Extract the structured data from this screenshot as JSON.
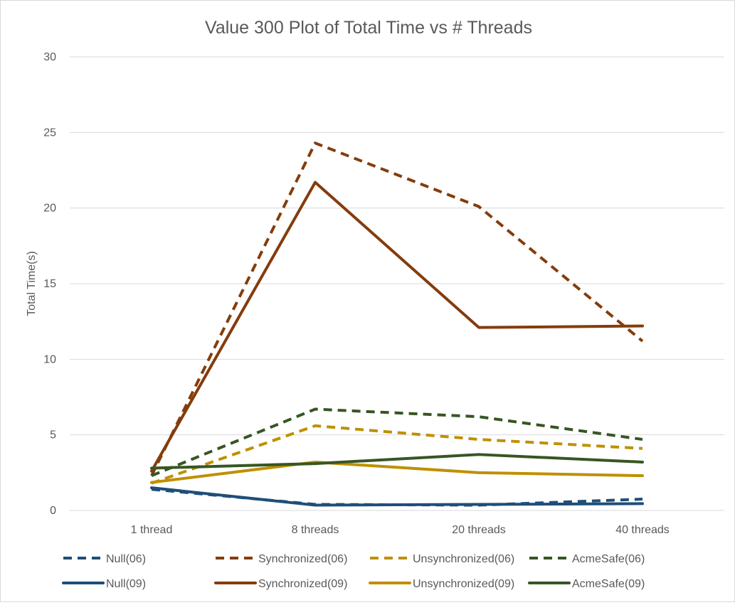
{
  "chart_data": {
    "type": "line",
    "title": "Value 300 Plot of Total Time vs # Threads",
    "xlabel": "",
    "ylabel": "Total Time(s)",
    "categories": [
      "1 thread",
      "8 threads",
      "20 threads",
      "40 threads"
    ],
    "ylim": [
      0,
      30
    ],
    "yticks": [
      0,
      5,
      10,
      15,
      20,
      25,
      30
    ],
    "grid": true,
    "legend_position": "bottom",
    "series": [
      {
        "name": "Null(06)",
        "values": [
          1.4,
          0.4,
          0.35,
          0.75
        ],
        "color": "#1f4e79",
        "dashed": true
      },
      {
        "name": "Synchronized(06)",
        "values": [
          2.3,
          24.3,
          20.1,
          11.2
        ],
        "color": "#843c0c",
        "dashed": true
      },
      {
        "name": "Unsynchronized(06)",
        "values": [
          1.8,
          5.6,
          4.7,
          4.1
        ],
        "color": "#bf9000",
        "dashed": true
      },
      {
        "name": "AcmeSafe(06)",
        "values": [
          2.3,
          6.7,
          6.2,
          4.7
        ],
        "color": "#375623",
        "dashed": true
      },
      {
        "name": "Null(09)",
        "values": [
          1.5,
          0.35,
          0.4,
          0.45
        ],
        "color": "#1f4e79",
        "dashed": false
      },
      {
        "name": "Synchronized(09)",
        "values": [
          2.6,
          21.7,
          12.1,
          12.2
        ],
        "color": "#843c0c",
        "dashed": false
      },
      {
        "name": "Unsynchronized(09)",
        "values": [
          1.85,
          3.2,
          2.5,
          2.3
        ],
        "color": "#bf9000",
        "dashed": false
      },
      {
        "name": "AcmeSafe(09)",
        "values": [
          2.8,
          3.1,
          3.7,
          3.2
        ],
        "color": "#375623",
        "dashed": false
      }
    ]
  }
}
